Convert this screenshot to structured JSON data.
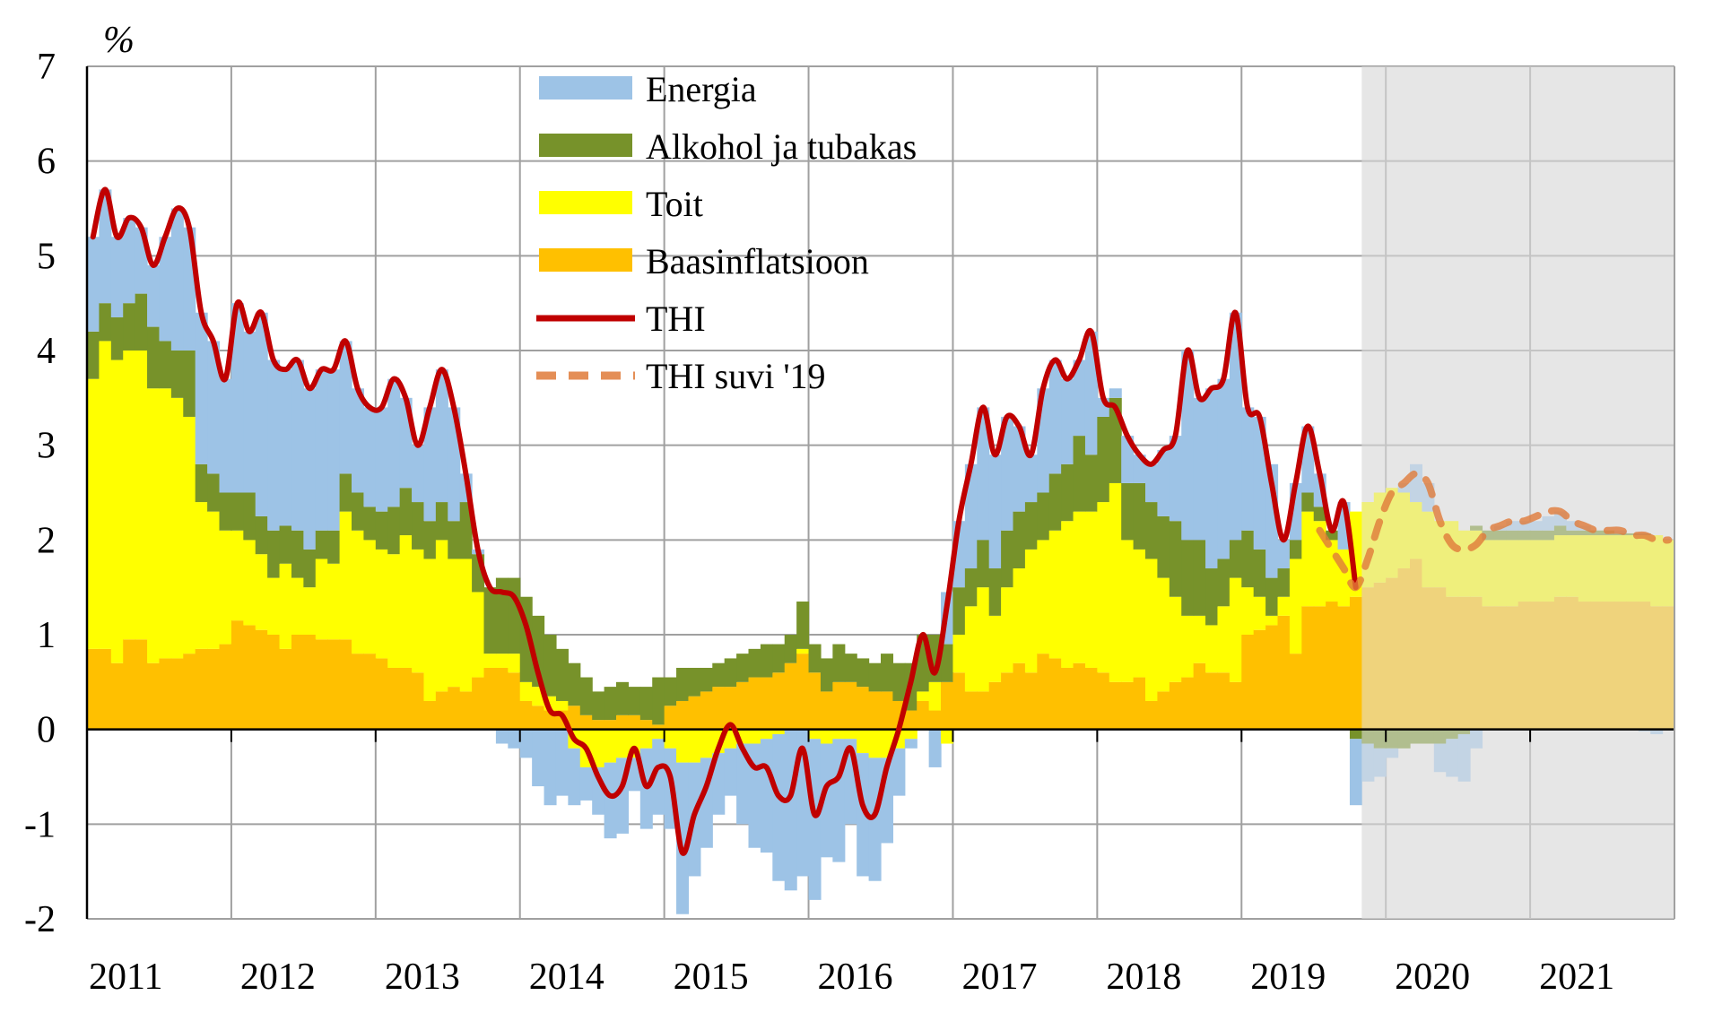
{
  "chart_data": {
    "type": "bar",
    "subtype": "stacked-bar-with-lines",
    "ylabel": "%",
    "ylim": [
      -2,
      7
    ],
    "yticks": [
      7,
      6,
      5,
      4,
      3,
      2,
      1,
      0,
      -1,
      -2
    ],
    "xticks": [
      "2011",
      "2012",
      "2013",
      "2014",
      "2015",
      "2016",
      "2017",
      "2018",
      "2019",
      "2020",
      "2021"
    ],
    "x_start": "2011-01",
    "frequency": "monthly",
    "forecast_start": "2019-11",
    "grid": true,
    "legend_position": "top-center",
    "series": [
      {
        "name": "Baasinflatsioon",
        "kind": "bar",
        "color": "#ffc000",
        "values": [
          0.85,
          0.85,
          0.7,
          0.95,
          0.95,
          0.7,
          0.75,
          0.75,
          0.8,
          0.85,
          0.85,
          0.9,
          1.15,
          1.1,
          1.05,
          1.0,
          0.85,
          1.0,
          1.0,
          0.95,
          0.95,
          0.95,
          0.8,
          0.8,
          0.75,
          0.65,
          0.65,
          0.6,
          0.3,
          0.4,
          0.45,
          0.4,
          0.55,
          0.65,
          0.65,
          0.6,
          0.3,
          0.25,
          0.2,
          0.2,
          0.25,
          0.15,
          0.1,
          0.1,
          0.15,
          0.15,
          0.1,
          0.05,
          0.25,
          0.3,
          0.35,
          0.4,
          0.45,
          0.45,
          0.5,
          0.55,
          0.55,
          0.6,
          0.7,
          0.8,
          0.6,
          0.4,
          0.5,
          0.5,
          0.45,
          0.4,
          0.4,
          0.3,
          0.2,
          0.3,
          0.2,
          0.5,
          0.6,
          0.4,
          0.4,
          0.5,
          0.6,
          0.7,
          0.6,
          0.8,
          0.75,
          0.65,
          0.7,
          0.65,
          0.6,
          0.5,
          0.5,
          0.55,
          0.3,
          0.4,
          0.5,
          0.55,
          0.7,
          0.6,
          0.6,
          0.5,
          1.0,
          1.05,
          1.1,
          1.2,
          0.8,
          1.3,
          1.3,
          1.35,
          1.3,
          1.4,
          1.5,
          1.55,
          1.6,
          1.7,
          1.8,
          1.5,
          1.5,
          1.4,
          1.4,
          1.4,
          1.3,
          1.3,
          1.3,
          1.35,
          1.35,
          1.35,
          1.4,
          1.4,
          1.35,
          1.35,
          1.35,
          1.35,
          1.35,
          1.35,
          1.3,
          1.3
        ]
      },
      {
        "name": "Toit",
        "kind": "bar",
        "color": "#ffff00",
        "values": [
          2.85,
          3.25,
          3.2,
          3.05,
          3.05,
          2.9,
          2.85,
          2.75,
          2.5,
          1.55,
          1.45,
          1.2,
          0.95,
          0.9,
          0.8,
          0.6,
          0.9,
          0.6,
          0.5,
          0.85,
          0.8,
          1.35,
          1.3,
          1.2,
          1.15,
          1.2,
          1.4,
          1.3,
          1.5,
          1.6,
          1.35,
          1.4,
          0.9,
          0.15,
          0.15,
          0.2,
          0.2,
          0.2,
          0.15,
          0.1,
          -0.2,
          -0.4,
          -0.4,
          -0.35,
          -0.3,
          -0.3,
          -0.2,
          -0.1,
          -0.2,
          -0.35,
          -0.35,
          -0.3,
          -0.25,
          -0.2,
          -0.15,
          -0.15,
          -0.1,
          -0.05,
          0,
          0.05,
          -0.1,
          -0.15,
          -0.1,
          -0.1,
          -0.25,
          -0.3,
          -0.3,
          -0.2,
          -0.1,
          0.1,
          0.3,
          -0.15,
          0.4,
          0.9,
          1.1,
          0.7,
          0.9,
          1.0,
          1.3,
          1.2,
          1.35,
          1.55,
          1.6,
          1.65,
          1.8,
          2.1,
          1.5,
          1.35,
          1.5,
          1.2,
          0.9,
          0.65,
          0.5,
          0.5,
          0.7,
          1.1,
          0.5,
          0.35,
          0.1,
          0.2,
          1.0,
          1.0,
          0.9,
          0.65,
          0.6,
          0.9,
          0.9,
          0.95,
          0.95,
          0.8,
          0.6,
          0.8,
          0.7,
          0.8,
          0.7,
          0.7,
          0.7,
          0.7,
          0.7,
          0.65,
          0.65,
          0.65,
          0.65,
          0.65,
          0.7,
          0.7,
          0.7,
          0.7,
          0.7,
          0.7,
          0.75,
          0.7
        ]
      },
      {
        "name": "Alkohol ja tubakas",
        "kind": "bar",
        "color": "#77922a",
        "values": [
          0.5,
          0.4,
          0.45,
          0.5,
          0.6,
          0.65,
          0.5,
          0.5,
          0.7,
          0.4,
          0.4,
          0.4,
          0.4,
          0.5,
          0.4,
          0.5,
          0.4,
          0.5,
          0.4,
          0.3,
          0.35,
          0.4,
          0.4,
          0.35,
          0.4,
          0.5,
          0.5,
          0.5,
          0.4,
          0.4,
          0.4,
          0.6,
          0.4,
          0.7,
          0.8,
          0.8,
          0.9,
          0.75,
          0.65,
          0.55,
          0.45,
          0.4,
          0.3,
          0.35,
          0.35,
          0.3,
          0.35,
          0.5,
          0.3,
          0.35,
          0.3,
          0.25,
          0.25,
          0.3,
          0.3,
          0.3,
          0.35,
          0.3,
          0.3,
          0.5,
          0.3,
          0.35,
          0.4,
          0.3,
          0.3,
          0.3,
          0.4,
          0.4,
          0.5,
          0.6,
          0.5,
          0.4,
          0.5,
          0.4,
          0.5,
          0.5,
          0.6,
          0.6,
          0.5,
          0.5,
          0.6,
          0.6,
          0.8,
          0.6,
          0.9,
          0.9,
          0.6,
          0.7,
          0.6,
          0.65,
          0.8,
          0.8,
          0.8,
          0.6,
          0.5,
          0.4,
          0.6,
          0.5,
          0.4,
          0.3,
          0.2,
          0.2,
          0.15,
          0.1,
          0.0,
          -0.1,
          -0.15,
          -0.2,
          -0.2,
          -0.2,
          -0.15,
          -0.15,
          -0.15,
          -0.1,
          -0.05,
          0.05,
          0.1,
          0.1,
          0.1,
          0.1,
          0.1,
          0.1,
          0.1,
          0.05,
          0.05,
          0.05,
          0.05,
          0.02,
          0.02,
          0.02,
          0.0,
          0.0
        ]
      },
      {
        "name": "Energia",
        "kind": "bar",
        "color": "#9dc3e6",
        "values": [
          1.0,
          1.2,
          0.85,
          0.9,
          0.7,
          0.65,
          1.1,
          1.5,
          1.3,
          1.6,
          1.4,
          1.2,
          2.0,
          1.7,
          2.15,
          1.8,
          1.65,
          1.8,
          1.7,
          1.7,
          1.7,
          1.4,
          1.1,
          1.05,
          1.1,
          1.35,
          0.95,
          0.6,
          1.2,
          1.4,
          1.2,
          0.3,
          0.05,
          0.0,
          -0.15,
          -0.2,
          -0.3,
          -0.6,
          -0.8,
          -0.7,
          -0.6,
          -0.35,
          -0.5,
          -0.8,
          -0.8,
          -0.35,
          -0.85,
          -0.8,
          -0.85,
          -1.6,
          -1.2,
          -0.95,
          -0.65,
          -0.5,
          -0.85,
          -1.1,
          -1.2,
          -1.55,
          -1.7,
          -1.55,
          -1.7,
          -1.2,
          -1.3,
          -0.9,
          -1.3,
          -1.3,
          -0.9,
          -0.5,
          -0.1,
          0.0,
          -0.4,
          0.55,
          0.7,
          1.1,
          1.4,
          1.2,
          1.2,
          0.9,
          0.5,
          1.1,
          1.2,
          0.9,
          0.8,
          1.3,
          0.2,
          0.1,
          0.5,
          0.3,
          0.4,
          0.7,
          0.9,
          2.0,
          1.5,
          1.9,
          1.9,
          2.4,
          1.3,
          1.4,
          1.2,
          0.3,
          0.6,
          0.7,
          0.35,
          0.0,
          0.5,
          -0.7,
          -0.4,
          -0.3,
          -0.1,
          0.1,
          0.4,
          0.3,
          -0.3,
          -0.4,
          -0.5,
          -0.2,
          0.0,
          0.05,
          0.1,
          0.1,
          0.1,
          0.15,
          0.15,
          0.1,
          0.05,
          0.0,
          0.0,
          0.03,
          0.0,
          -0.02,
          -0.05,
          0.0
        ]
      },
      {
        "name": "THI",
        "kind": "line",
        "color": "#c00000",
        "start": "2011-01",
        "values": [
          5.2,
          5.7,
          5.2,
          5.4,
          5.3,
          4.9,
          5.2,
          5.5,
          5.3,
          4.4,
          4.1,
          3.7,
          4.5,
          4.2,
          4.4,
          3.9,
          3.8,
          3.9,
          3.6,
          3.8,
          3.8,
          4.1,
          3.6,
          3.4,
          3.4,
          3.7,
          3.5,
          3.0,
          3.4,
          3.8,
          3.4,
          2.7,
          1.9,
          1.5,
          1.45,
          1.4,
          1.1,
          0.6,
          0.2,
          0.15,
          -0.1,
          -0.2,
          -0.5,
          -0.7,
          -0.6,
          -0.2,
          -0.6,
          -0.4,
          -0.5,
          -1.3,
          -0.9,
          -0.6,
          -0.2,
          0.05,
          -0.2,
          -0.4,
          -0.4,
          -0.7,
          -0.7,
          -0.2,
          -0.9,
          -0.6,
          -0.5,
          -0.2,
          -0.8,
          -0.9,
          -0.4,
          0.0,
          0.5,
          1.0,
          0.6,
          1.3,
          2.2,
          2.8,
          3.4,
          2.9,
          3.3,
          3.2,
          2.9,
          3.6,
          3.9,
          3.7,
          3.9,
          4.2,
          3.5,
          3.4,
          3.1,
          2.9,
          2.8,
          2.95,
          3.1,
          4.0,
          3.5,
          3.6,
          3.7,
          4.4,
          3.4,
          3.3,
          2.6,
          2.0,
          2.6,
          3.2,
          2.7,
          2.1,
          2.4,
          1.5
        ]
      },
      {
        "name": "THI suvi '19",
        "kind": "dashed-line",
        "color": "#e07b39",
        "start": "2019-07",
        "values": [
          2.1,
          1.9,
          1.7,
          1.5,
          1.8,
          2.2,
          2.5,
          2.6,
          2.7,
          2.6,
          2.2,
          1.95,
          1.9,
          1.95,
          2.1,
          2.15,
          2.2,
          2.2,
          2.25,
          2.3,
          2.3,
          2.2,
          2.15,
          2.1,
          2.1,
          2.1,
          2.05,
          2.05,
          2.0,
          2.0
        ]
      }
    ],
    "legend": [
      "Energia",
      "Alkohol ja tubakas",
      "Toit",
      "Baasinflatsioon",
      "THI",
      "THI suvi '19"
    ]
  }
}
